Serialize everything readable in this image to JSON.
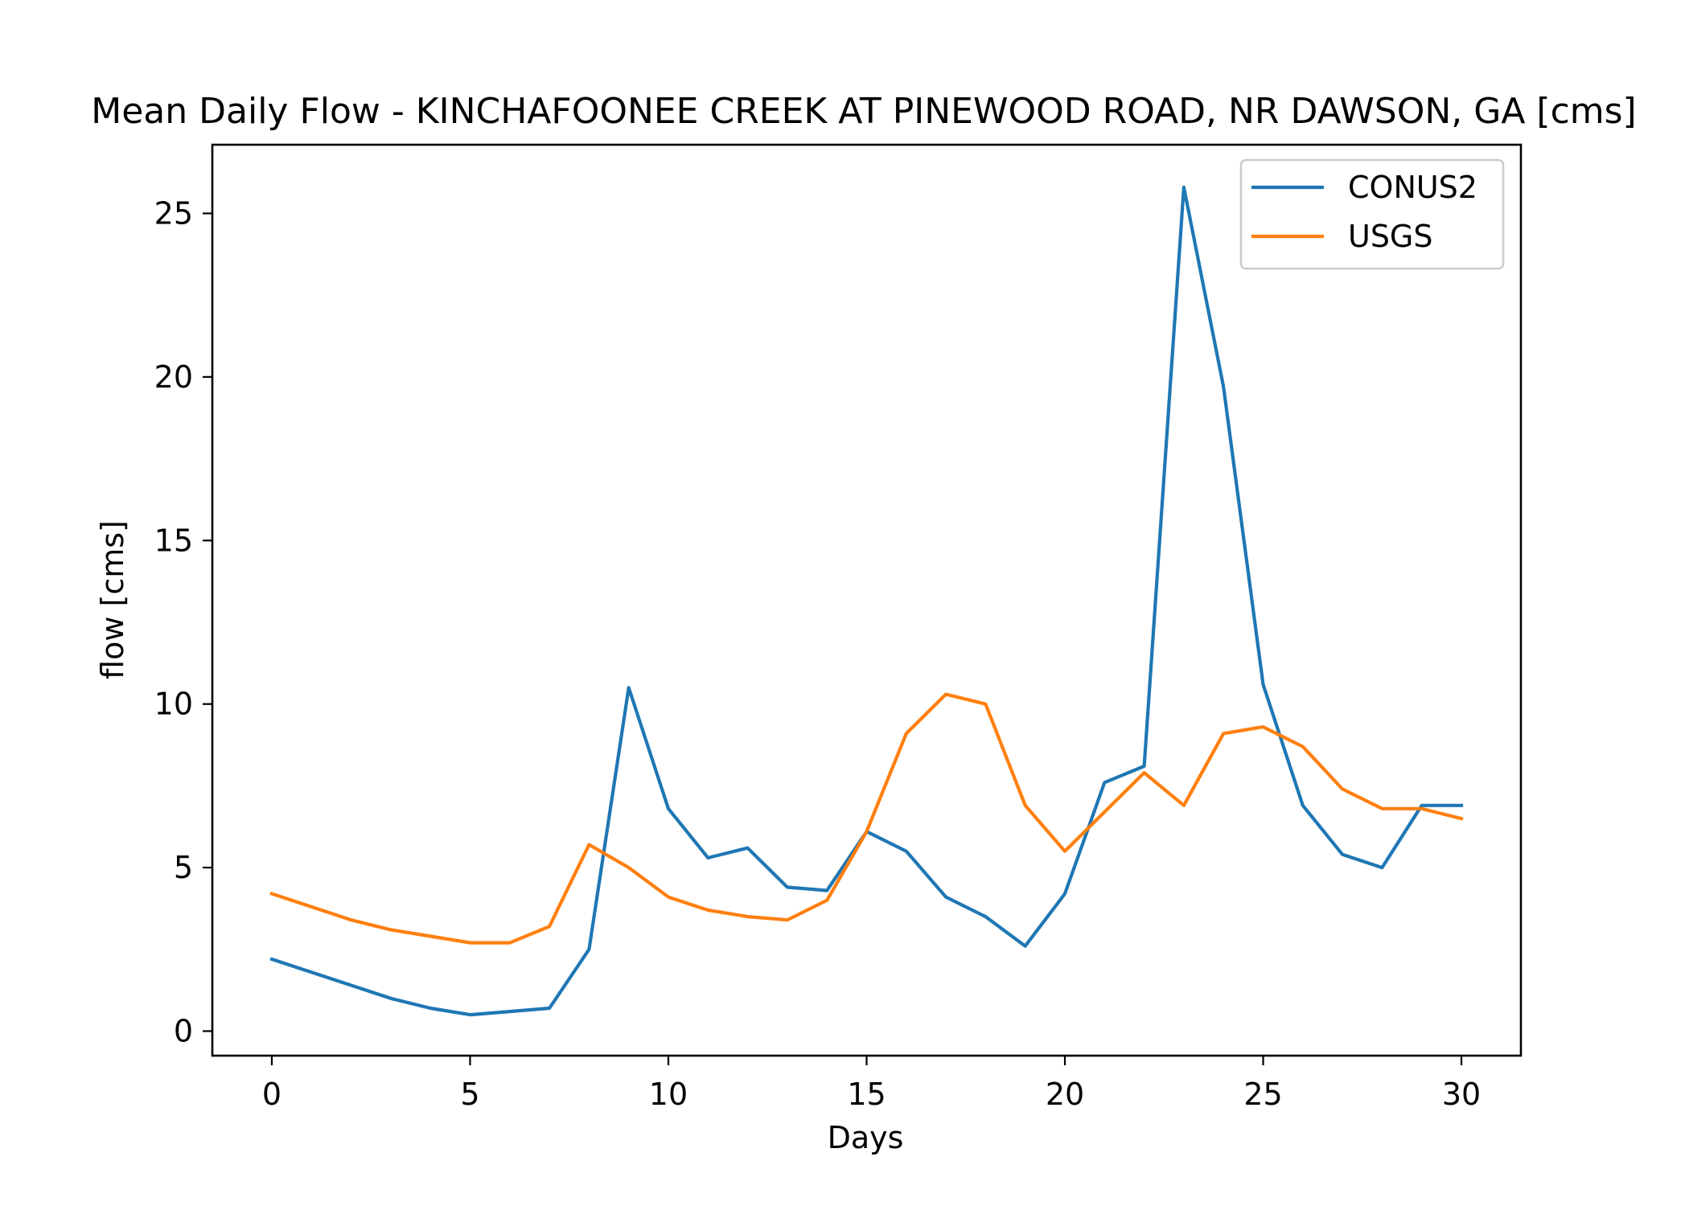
{
  "chart_data": {
    "type": "line",
    "title": "Mean Daily Flow - KINCHAFOONEE CREEK AT PINEWOOD ROAD, NR DAWSON, GA [cms]",
    "xlabel": "Days",
    "ylabel": "flow [cms]",
    "xlim": [
      -1.5,
      31.5
    ],
    "ylim": [
      -0.75,
      27.1
    ],
    "xticks": [
      0,
      5,
      10,
      15,
      20,
      25,
      30
    ],
    "yticks": [
      0,
      5,
      10,
      15,
      20,
      25
    ],
    "xtick_labels": [
      "0",
      "5",
      "10",
      "15",
      "20",
      "25",
      "30"
    ],
    "ytick_labels": [
      "0",
      "5",
      "10",
      "15",
      "20",
      "25"
    ],
    "legend_position": "upper right",
    "grid": false,
    "x": [
      0,
      1,
      2,
      3,
      4,
      5,
      6,
      7,
      8,
      9,
      10,
      11,
      12,
      13,
      14,
      15,
      16,
      17,
      18,
      19,
      20,
      21,
      22,
      23,
      24,
      25,
      26,
      27,
      28,
      29,
      30
    ],
    "series": [
      {
        "name": "CONUS2",
        "color": "#1f77b4",
        "values": [
          2.2,
          1.8,
          1.4,
          1.0,
          0.7,
          0.5,
          0.6,
          0.7,
          2.5,
          10.5,
          6.8,
          5.3,
          5.6,
          4.4,
          4.3,
          6.1,
          5.5,
          4.1,
          3.5,
          2.6,
          4.2,
          7.6,
          8.1,
          25.8,
          19.7,
          10.6,
          6.9,
          5.4,
          5.0,
          6.9,
          6.9
        ]
      },
      {
        "name": "USGS",
        "color": "#ff7f0e",
        "values": [
          4.2,
          3.8,
          3.4,
          3.1,
          2.9,
          2.7,
          2.7,
          3.2,
          5.7,
          5.0,
          4.1,
          3.7,
          3.5,
          3.4,
          4.0,
          6.1,
          9.1,
          10.3,
          10.0,
          6.9,
          5.5,
          6.7,
          7.9,
          6.9,
          9.1,
          9.3,
          8.7,
          7.4,
          6.8,
          6.8,
          6.5
        ]
      }
    ]
  }
}
